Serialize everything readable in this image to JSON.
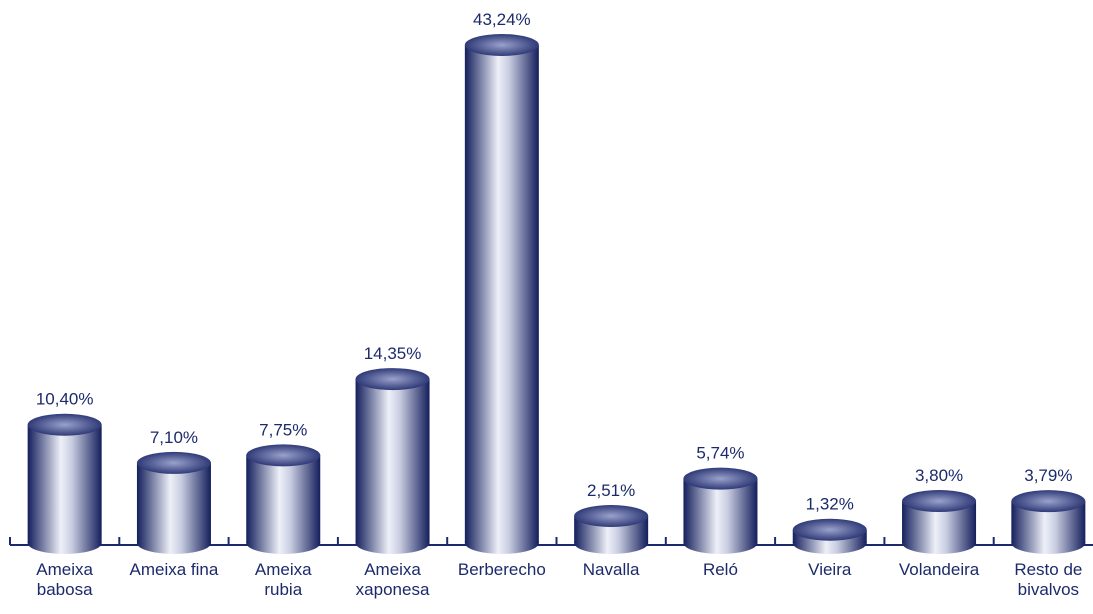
{
  "chart_data": {
    "type": "bar",
    "categories": [
      "Ameixa\nbabosa",
      "Ameixa fina",
      "Ameixa\nrubia",
      "Ameixa\nxaponesa",
      "Berberecho",
      "Navalla",
      "Reló",
      "Vieira",
      "Volandeira",
      "Resto de\nbivalvos"
    ],
    "values": [
      10.4,
      7.1,
      7.75,
      14.35,
      43.24,
      2.51,
      5.74,
      1.32,
      3.8,
      3.79
    ],
    "value_labels": [
      "10,40%",
      "7,10%",
      "7,75%",
      "14,35%",
      "43,24%",
      "2,51%",
      "5,74%",
      "1,32%",
      "3,80%",
      "3,79%"
    ],
    "color": "#1c2a6b"
  }
}
